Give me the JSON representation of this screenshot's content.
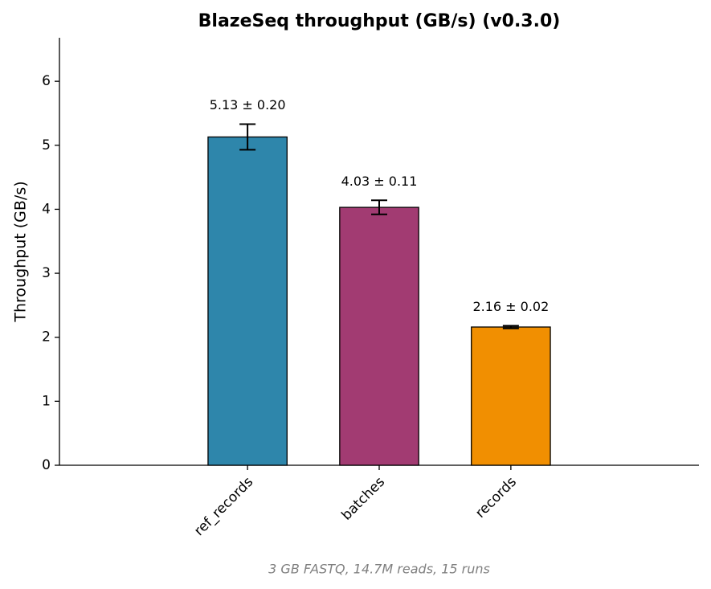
{
  "chart_data": {
    "type": "bar",
    "title": "BlazeSeq throughput (GB/s)  (v0.3.0)",
    "ylabel": "Throughput (GB/s)",
    "footnote": "3 GB FASTQ, 14.7M reads, 15 runs",
    "categories": [
      "ref_records",
      "batches",
      "records"
    ],
    "values": [
      5.13,
      4.03,
      2.16
    ],
    "errors": [
      0.2,
      0.11,
      0.02
    ],
    "value_labels": [
      "5.13 ± 0.20",
      "4.03 ± 0.11",
      "2.16 ± 0.02"
    ],
    "colors": [
      "#2e86ab",
      "#a23b72",
      "#f18f01"
    ],
    "ylim": [
      0,
      6.68
    ],
    "yticks": [
      0,
      1,
      2,
      3,
      4,
      5,
      6
    ],
    "grid": false
  }
}
